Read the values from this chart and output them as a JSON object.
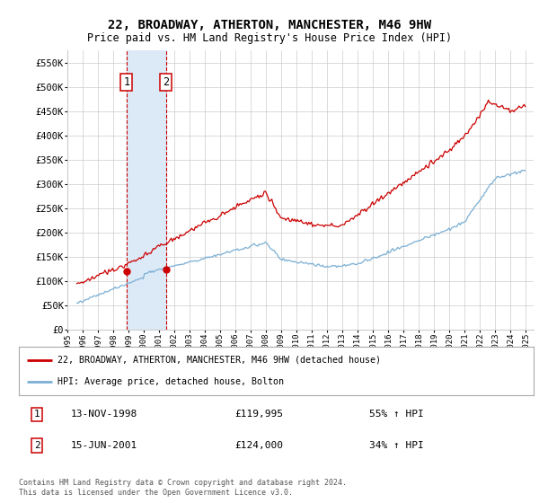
{
  "title": "22, BROADWAY, ATHERTON, MANCHESTER, M46 9HW",
  "subtitle": "Price paid vs. HM Land Registry's House Price Index (HPI)",
  "ylim": [
    0,
    575000
  ],
  "yticks": [
    0,
    50000,
    100000,
    150000,
    200000,
    250000,
    300000,
    350000,
    400000,
    450000,
    500000,
    550000
  ],
  "ytick_labels": [
    "£0",
    "£50K",
    "£100K",
    "£150K",
    "£200K",
    "£250K",
    "£300K",
    "£350K",
    "£400K",
    "£450K",
    "£500K",
    "£550K"
  ],
  "xlim_start": 1995.5,
  "xlim_end": 2025.5,
  "background_color": "#ffffff",
  "grid_color": "#cccccc",
  "transaction1_date": 1998.87,
  "transaction1_price": 119995,
  "transaction1_label": "1",
  "transaction2_date": 2001.46,
  "transaction2_price": 124000,
  "transaction2_label": "2",
  "shade_color": "#dce9f7",
  "dashed_line_color": "#cc0000",
  "legend_line1": "22, BROADWAY, ATHERTON, MANCHESTER, M46 9HW (detached house)",
  "legend_line2": "HPI: Average price, detached house, Bolton",
  "table_row1_num": "1",
  "table_row1_date": "13-NOV-1998",
  "table_row1_price": "£119,995",
  "table_row1_hpi": "55% ↑ HPI",
  "table_row2_num": "2",
  "table_row2_date": "15-JUN-2001",
  "table_row2_price": "£124,000",
  "table_row2_hpi": "34% ↑ HPI",
  "footer": "Contains HM Land Registry data © Crown copyright and database right 2024.\nThis data is licensed under the Open Government Licence v3.0.",
  "hpi_line_color": "#7bafd4",
  "price_line_color": "#cc0000"
}
